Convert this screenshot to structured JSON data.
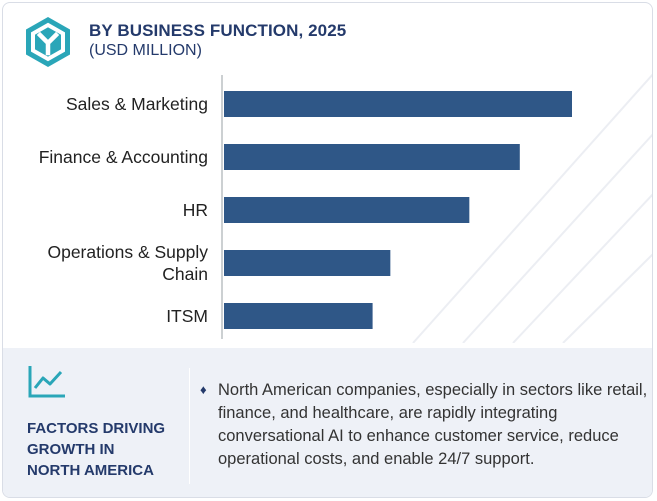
{
  "header": {
    "title": "BY BUSINESS FUNCTION, 2025",
    "subtitle": "(USD MILLION)",
    "logo_icon": "hexagon-y-logo-icon"
  },
  "chart_data": {
    "type": "bar",
    "orientation": "horizontal",
    "categories": [
      "Sales & Marketing",
      "Finance & Accounting",
      "HR",
      "Operations & Supply Chain",
      "ITSM"
    ],
    "values": [
      100,
      85,
      70.5,
      47.8,
      42.7
    ],
    "title": "BY BUSINESS FUNCTION, 2025",
    "xlabel": "",
    "ylabel": "",
    "xlim": [
      0,
      100
    ],
    "grid": false,
    "bar_color": "#2f5787",
    "axis_color": "#9aa0a6"
  },
  "factors": {
    "icon": "trend-line-icon",
    "title_lines": [
      "FACTORS DRIVING",
      "GROWTH IN",
      "NORTH AMERICA"
    ],
    "bullet": "♦",
    "text": "North American companies, especially in sectors like retail, finance, and healthcare, are rapidly integrating conversational AI to enhance customer service, reduce operational costs, and enable 24/7 support."
  }
}
